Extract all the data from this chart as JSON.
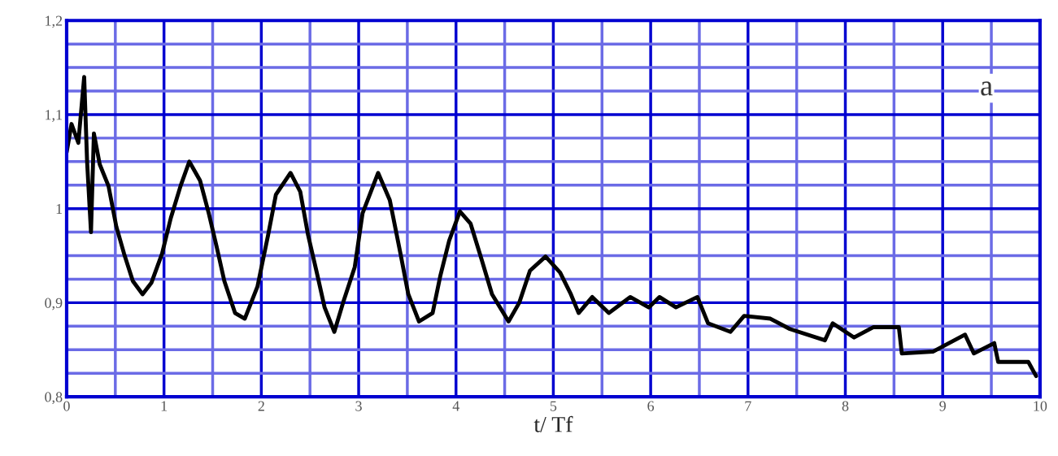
{
  "chart_data": {
    "type": "line",
    "xlabel": "t/ Tf",
    "series": [
      {
        "color": "#000000",
        "x": [
          0.0,
          0.05,
          0.12,
          0.18,
          0.21,
          0.25,
          0.28,
          0.34,
          0.43,
          0.51,
          0.59,
          0.68,
          0.78,
          0.87,
          0.98,
          1.07,
          1.17,
          1.26,
          1.37,
          1.46,
          1.54,
          1.62,
          1.73,
          1.83,
          1.96,
          2.07,
          2.15,
          2.3,
          2.4,
          2.48,
          2.57,
          2.65,
          2.75,
          2.84,
          2.96,
          3.04,
          3.2,
          3.32,
          3.43,
          3.51,
          3.62,
          3.76,
          3.84,
          3.93,
          4.04,
          4.15,
          4.26,
          4.37,
          4.54,
          4.65,
          4.76,
          4.92,
          5.07,
          5.18,
          5.26,
          5.4,
          5.57,
          5.79,
          5.98,
          6.09,
          6.26,
          6.48,
          6.59,
          6.82,
          6.96,
          7.23,
          7.43,
          7.79,
          7.87,
          8.09,
          8.29,
          8.55,
          8.58,
          8.9,
          9.23,
          9.32,
          9.53,
          9.57,
          9.88,
          9.96
        ],
        "values": [
          1.06,
          1.09,
          1.07,
          1.14,
          1.05,
          0.975,
          1.08,
          1.047,
          1.024,
          0.981,
          0.952,
          0.923,
          0.909,
          0.921,
          0.952,
          0.99,
          1.024,
          1.05,
          1.03,
          0.995,
          0.96,
          0.923,
          0.889,
          0.883,
          0.917,
          0.972,
          1.015,
          1.038,
          1.018,
          0.972,
          0.932,
          0.895,
          0.869,
          0.9,
          0.938,
          0.995,
          1.038,
          1.009,
          0.952,
          0.909,
          0.88,
          0.889,
          0.929,
          0.966,
          0.997,
          0.984,
          0.947,
          0.909,
          0.88,
          0.9,
          0.934,
          0.949,
          0.932,
          0.909,
          0.889,
          0.906,
          0.889,
          0.906,
          0.895,
          0.906,
          0.895,
          0.906,
          0.878,
          0.869,
          0.886,
          0.883,
          0.872,
          0.86,
          0.878,
          0.863,
          0.874,
          0.874,
          0.846,
          0.848,
          0.866,
          0.846,
          0.857,
          0.837,
          0.837,
          0.822
        ]
      }
    ],
    "xlim": [
      0,
      10
    ],
    "ylim": [
      0.8,
      1.2
    ],
    "xticks": [
      0,
      {
        "value": 0.5,
        "label": null
      },
      1,
      {
        "value": 1.5,
        "label": null
      },
      2,
      {
        "value": 2.5,
        "label": null
      },
      3,
      {
        "value": 3.5,
        "label": null
      },
      4,
      {
        "value": 4.5,
        "label": null
      },
      5,
      {
        "value": 5.5,
        "label": null
      },
      6,
      {
        "value": 6.5,
        "label": null
      },
      7,
      {
        "value": 7.5,
        "label": null
      },
      8,
      {
        "value": 8.5,
        "label": null
      },
      9,
      {
        "value": 9.5,
        "label": null
      },
      10
    ],
    "yticks": [
      {
        "value": 0.8,
        "label": "0,8"
      },
      {
        "value": 0.825,
        "label": null
      },
      {
        "value": 0.85,
        "label": null
      },
      {
        "value": 0.875,
        "label": null
      },
      {
        "value": 0.9,
        "label": "0,9"
      },
      {
        "value": 0.925,
        "label": null
      },
      {
        "value": 0.95,
        "label": null
      },
      {
        "value": 0.975,
        "label": null
      },
      {
        "value": 1,
        "label": "1"
      },
      {
        "value": 1.025,
        "label": null
      },
      {
        "value": 1.05,
        "label": null
      },
      {
        "value": 1.075,
        "label": null
      },
      {
        "value": 1.1,
        "label": "1,1"
      },
      {
        "value": 1.125,
        "label": null
      },
      {
        "value": 1.15,
        "label": null
      },
      {
        "value": 1.175,
        "label": null
      },
      {
        "value": 1.2,
        "label": "1,2"
      }
    ],
    "grid": true,
    "annotations": [
      "a"
    ]
  }
}
